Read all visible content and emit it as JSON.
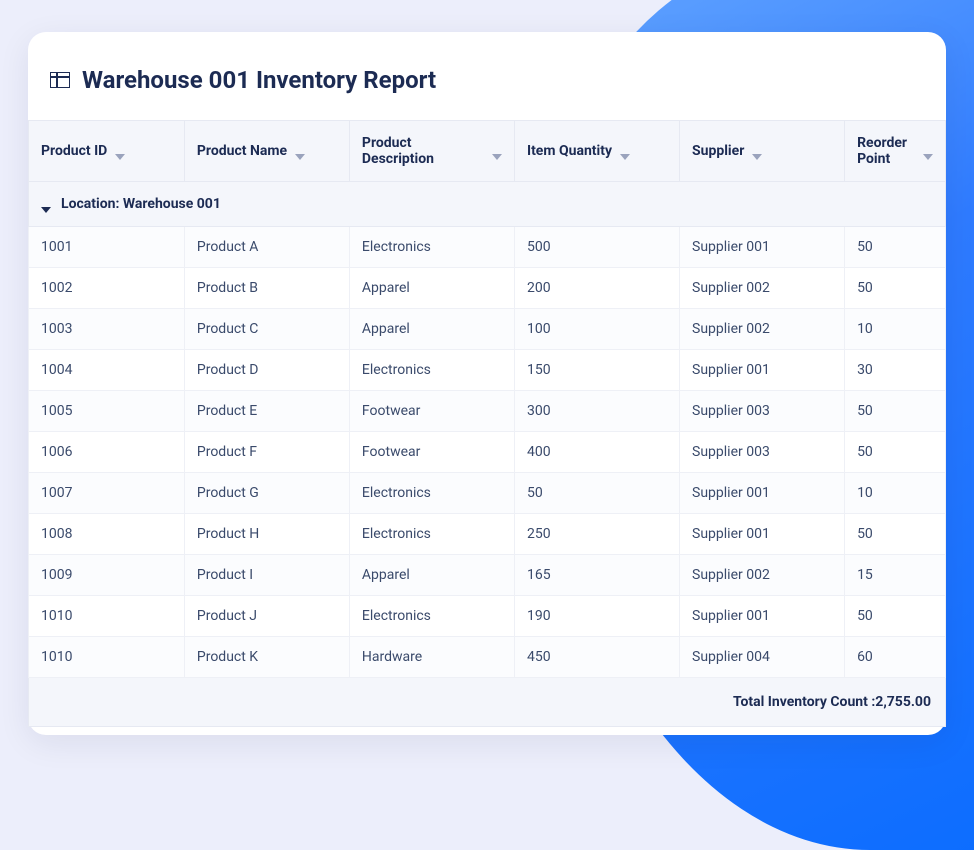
{
  "colors": {
    "page_bg": "#eceefb",
    "card_bg": "#ffffff",
    "accent_gradient_from": "#67a8ff",
    "accent_gradient_to": "#0a6cff",
    "heading_text": "#1c2b53",
    "body_text": "#3a4a6b",
    "border": "#e6e9f2",
    "header_bg": "#f4f6fb",
    "sort_icon": "#9aa3bd"
  },
  "header": {
    "title": "Warehouse 001 Inventory Report"
  },
  "table": {
    "columns": [
      {
        "label": "Product ID"
      },
      {
        "label": "Product Name"
      },
      {
        "label": "Product Description"
      },
      {
        "label": "Item Quantity"
      },
      {
        "label": "Supplier"
      },
      {
        "label": "Reorder Point"
      }
    ],
    "group_label": "Location: Warehouse 001",
    "rows": [
      {
        "id": "1001",
        "name": "Product A",
        "desc": "Electronics",
        "qty": "500",
        "supplier": "Supplier 001",
        "reorder": "50"
      },
      {
        "id": "1002",
        "name": "Product B",
        "desc": "Apparel",
        "qty": "200",
        "supplier": "Supplier 002",
        "reorder": "50"
      },
      {
        "id": "1003",
        "name": "Product C",
        "desc": "Apparel",
        "qty": "100",
        "supplier": "Supplier 002",
        "reorder": "10"
      },
      {
        "id": "1004",
        "name": "Product D",
        "desc": "Electronics",
        "qty": "150",
        "supplier": "Supplier 001",
        "reorder": "30"
      },
      {
        "id": "1005",
        "name": "Product E",
        "desc": "Footwear",
        "qty": "300",
        "supplier": "Supplier 003",
        "reorder": "50"
      },
      {
        "id": "1006",
        "name": "Product F",
        "desc": "Footwear",
        "qty": "400",
        "supplier": "Supplier 003",
        "reorder": "50"
      },
      {
        "id": "1007",
        "name": "Product G",
        "desc": "Electronics",
        "qty": "50",
        "supplier": "Supplier 001",
        "reorder": "10"
      },
      {
        "id": "1008",
        "name": "Product H",
        "desc": "Electronics",
        "qty": "250",
        "supplier": "Supplier 001",
        "reorder": "50"
      },
      {
        "id": "1009",
        "name": "Product I",
        "desc": "Apparel",
        "qty": "165",
        "supplier": "Supplier 002",
        "reorder": "15"
      },
      {
        "id": "1010",
        "name": "Product J",
        "desc": "Electronics",
        "qty": "190",
        "supplier": "Supplier 001",
        "reorder": "50"
      },
      {
        "id": "1010",
        "name": "Product K",
        "desc": "Hardware",
        "qty": "450",
        "supplier": "Supplier 004",
        "reorder": "60"
      }
    ],
    "footer_label": "Total Inventory Count :",
    "footer_value": "2,755.00"
  }
}
